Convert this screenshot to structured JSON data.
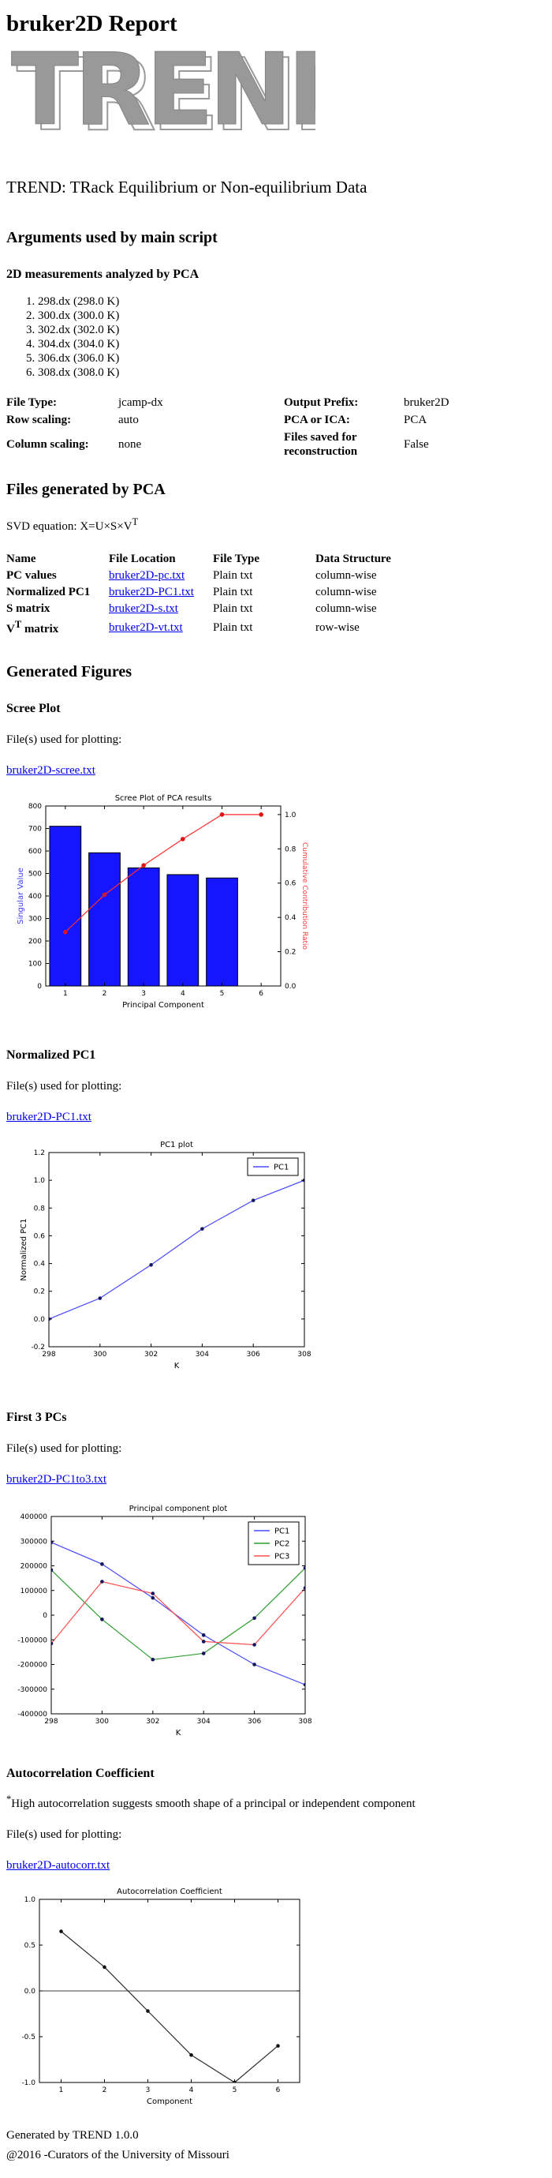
{
  "page": {
    "title": "bruker2D Report",
    "logo_text": "TREND",
    "subtitle": "TREND: TRack Equilibrium or Non-equilibrium Data",
    "link_color": "#0000ee"
  },
  "arguments_section": {
    "heading": "Arguments used by main script",
    "subheading": "2D measurements analyzed by PCA",
    "measurements": [
      "298.dx (298.0 K)",
      "300.dx (300.0 K)",
      "302.dx (302.0 K)",
      "304.dx (304.0 K)",
      "306.dx (306.0 K)",
      "308.dx (308.0 K)"
    ],
    "settings": [
      {
        "label": "File Type:",
        "value": "jcamp-dx",
        "label2": "Output Prefix:",
        "value2": "bruker2D"
      },
      {
        "label": "Row scaling:",
        "value": "auto",
        "label2": "PCA or ICA:",
        "value2": "PCA"
      },
      {
        "label": "Column scaling:",
        "value": "none",
        "label2": "Files saved for reconstruction",
        "value2": "False"
      }
    ]
  },
  "files_section": {
    "heading": "Files generated by PCA",
    "svd_prefix": "SVD equation: X=U×S×V",
    "svd_sup": "T",
    "table": {
      "headers": [
        "Name",
        "File Location",
        "File Type",
        "Data Structure"
      ],
      "rows": [
        {
          "name": "PC values",
          "location": "bruker2D-pc.txt",
          "type": "Plain txt",
          "structure": "column-wise"
        },
        {
          "name": "Normalized PC1",
          "location": "bruker2D-PC1.txt",
          "type": "Plain txt",
          "structure": "column-wise"
        },
        {
          "name": "S matrix",
          "location": "bruker2D-s.txt",
          "type": "Plain txt",
          "structure": "column-wise"
        },
        {
          "name": "V",
          "name_sup": "T",
          "name_suffix": " matrix",
          "location": "bruker2D-vt.txt",
          "type": "Plain txt",
          "structure": "row-wise"
        }
      ]
    }
  },
  "figures_section": {
    "heading": "Generated Figures",
    "subsections": [
      {
        "heading": "Scree Plot",
        "files_label": "File(s) used for plotting:",
        "file_link": "bruker2D-scree.txt"
      },
      {
        "heading": "Normalized PC1",
        "files_label": "File(s) used for plotting:",
        "file_link": "bruker2D-PC1.txt"
      },
      {
        "heading": "First 3 PCs",
        "files_label": "File(s) used for plotting:",
        "file_link": "bruker2D-PC1to3.txt"
      },
      {
        "heading": "Autocorrelation Coefficient",
        "note_sup": "*",
        "note": "High autocorrelation suggests smooth shape of a principal or independent component",
        "files_label": "File(s) used for plotting:",
        "file_link": "bruker2D-autocorr.txt"
      }
    ]
  },
  "footer": {
    "generated_by": "Generated by TREND 1.0.0",
    "copyright": "@2016 -Curators of the University of Missouri"
  },
  "chart_data": [
    {
      "id": "scree",
      "type": "bar",
      "title": "Scree Plot of PCA results",
      "xlabel": "Principal Component",
      "ylabel": "Singular Value",
      "ylabel_color": "#3b3bff",
      "y2label": "Cumulative Contribution Ratio",
      "y2label_color": "#ff3b3b",
      "categories": [
        1,
        2,
        3,
        4,
        5,
        6
      ],
      "xlim": [
        0.5,
        6.5
      ],
      "xticks": [
        1,
        2,
        3,
        4,
        5,
        6
      ],
      "xtick_labels": [
        "1",
        "2",
        "3",
        "4",
        "5",
        "6"
      ],
      "ylim": [
        0,
        800
      ],
      "yticks": [
        0,
        100,
        200,
        300,
        400,
        500,
        600,
        700,
        800
      ],
      "ytick_labels": [
        "0",
        "100",
        "200",
        "300",
        "400",
        "500",
        "600",
        "700",
        "800"
      ],
      "y2lim": [
        0,
        1.05
      ],
      "y2ticks": [
        0,
        0.2,
        0.4,
        0.6,
        0.8,
        1.0
      ],
      "y2tick_labels": [
        "0.0",
        "0.2",
        "0.4",
        "0.6",
        "0.8",
        "1.0"
      ],
      "bar_values": [
        710,
        592,
        525,
        495,
        480,
        0
      ],
      "bar_color": "#1515ff",
      "series": [
        {
          "name": "Cumulative Contribution Ratio",
          "color": "#ff2b2b",
          "marker_color": "#e01515",
          "on_right": true,
          "values": [
            0.314,
            0.532,
            0.704,
            0.857,
            1.0,
            1.0
          ]
        }
      ],
      "legend": false
    },
    {
      "id": "pc1",
      "type": "line",
      "title": "PC1 plot",
      "xlabel": "K",
      "ylabel": "Normalized PC1",
      "x": [
        298,
        300,
        302,
        304,
        306,
        308
      ],
      "xlim": [
        298,
        308
      ],
      "xticks": [
        298,
        300,
        302,
        304,
        306,
        308
      ],
      "xtick_labels": [
        "298",
        "300",
        "302",
        "304",
        "306",
        "308"
      ],
      "ylim": [
        -0.2,
        1.2
      ],
      "yticks": [
        -0.2,
        0.0,
        0.2,
        0.4,
        0.6,
        0.8,
        1.0,
        1.2
      ],
      "ytick_labels": [
        "-0.2",
        "0.0",
        "0.2",
        "0.4",
        "0.6",
        "0.8",
        "1.0",
        "1.2"
      ],
      "series": [
        {
          "name": "PC1",
          "color": "#4a4aff",
          "marker_color": "#16165e",
          "values": [
            0.0,
            0.15,
            0.39,
            0.65,
            0.855,
            1.0
          ]
        }
      ],
      "legend": true,
      "legend_position": "top-right"
    },
    {
      "id": "pc1to3",
      "type": "line",
      "title": "Principal component plot",
      "xlabel": "K",
      "ylabel": "",
      "x": [
        298,
        300,
        302,
        304,
        306,
        308
      ],
      "xlim": [
        298,
        308
      ],
      "xticks": [
        298,
        300,
        302,
        304,
        306,
        308
      ],
      "xtick_labels": [
        "298",
        "300",
        "302",
        "304",
        "306",
        "308"
      ],
      "ylim": [
        -400000,
        400000
      ],
      "yticks": [
        -400000,
        -300000,
        -200000,
        -100000,
        0,
        100000,
        200000,
        300000,
        400000
      ],
      "ytick_labels": [
        "-400000",
        "-300000",
        "-200000",
        "-100000",
        "0",
        "100000",
        "200000",
        "300000",
        "400000"
      ],
      "series": [
        {
          "name": "PC1",
          "color": "#4a4aff",
          "marker_color": "#16165e",
          "values": [
            295000,
            207000,
            70000,
            -81000,
            -200000,
            -282000
          ]
        },
        {
          "name": "PC2",
          "color": "#2f9e2f",
          "marker_color": "#16165e",
          "values": [
            183000,
            -17000,
            -180000,
            -155000,
            -12000,
            191000
          ]
        },
        {
          "name": "PC3",
          "color": "#ff4d4d",
          "marker_color": "#16165e",
          "values": [
            -115000,
            136000,
            88000,
            -107000,
            -120000,
            110000
          ]
        }
      ],
      "legend": true,
      "legend_position": "top-right"
    },
    {
      "id": "autocorr",
      "type": "line",
      "title": "Autocorrelation Coefficient",
      "xlabel": "Component",
      "ylabel": "",
      "x": [
        1,
        2,
        3,
        4,
        5,
        6
      ],
      "xlim": [
        0.5,
        6.5
      ],
      "xticks": [
        1,
        2,
        3,
        4,
        5,
        6
      ],
      "xtick_labels": [
        "1",
        "2",
        "3",
        "4",
        "5",
        "6"
      ],
      "ylim": [
        -1.0,
        1.0
      ],
      "yticks": [
        -1.0,
        -0.5,
        0.0,
        0.5,
        1.0
      ],
      "ytick_labels": [
        "-1.0",
        "-0.5",
        "0.0",
        "0.5",
        "1.0"
      ],
      "hline": 0,
      "series": [
        {
          "name": "",
          "color": "#2b2b2b",
          "marker_color": "#111111",
          "values": [
            0.65,
            0.26,
            -0.22,
            -0.7,
            -1.0,
            -0.6
          ]
        }
      ],
      "legend": false
    }
  ]
}
